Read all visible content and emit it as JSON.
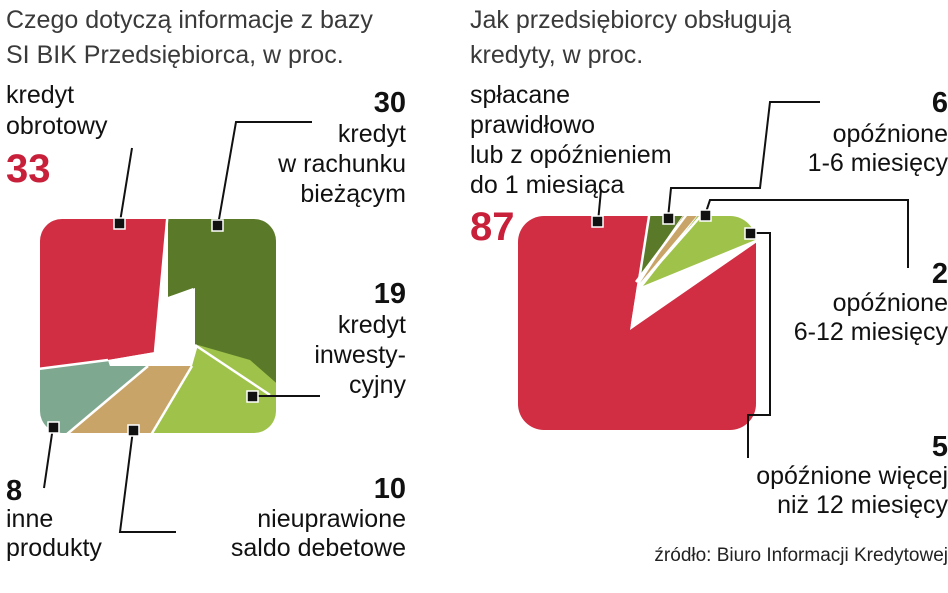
{
  "source": "źródło: Biuro Informacji Kredytowej",
  "chart_data": [
    {
      "type": "pie",
      "title": "Czego dotyczą informacje z bazy SI BIK Przedsiębiorca, w proc.",
      "title_lines": [
        "Czego dotyczą informacje z bazy",
        "SI BIK Przedsiębiorca, w proc."
      ],
      "slices": [
        {
          "value": 33,
          "label": "kredyt obrotowy",
          "label_lines": [
            "kredyt",
            "obrotowy"
          ],
          "color": "#d12e44"
        },
        {
          "value": 30,
          "label": "kredyt w rachunku bieżącym",
          "label_lines": [
            "kredyt",
            "w rachunku",
            "bieżącym"
          ],
          "color": "#5a7a2a"
        },
        {
          "value": 19,
          "label": "kredyt inwestycyjny",
          "label_lines": [
            "kredyt",
            "inwesty-",
            "cyjny"
          ],
          "color": "#9fc24a"
        },
        {
          "value": 10,
          "label": "nieuprawione saldo debetowe",
          "label_lines": [
            "nieuprawione",
            "saldo debetowe"
          ],
          "color": "#c9a468"
        },
        {
          "value": 8,
          "label": "inne produkty",
          "label_lines": [
            "inne",
            "produkty"
          ],
          "color": "#7ea890"
        }
      ]
    },
    {
      "type": "pie",
      "title": "Jak przedsiębiorcy obsługują kredyty, w proc.",
      "title_lines": [
        "Jak przedsiębiorcy obsługują",
        "kredyty, w proc."
      ],
      "slices": [
        {
          "value": 87,
          "value_text": "87",
          "label": "spłacane prawidłowo lub z opóźnieniem do 1 miesiąca",
          "label_lines": [
            "spłacane",
            "prawidłowo",
            "lub z opóźnieniem",
            "do 1 miesiąca"
          ],
          "color": "#d12e44"
        },
        {
          "value": 6,
          "value_text": "6",
          "label": "opóźnione 1-6 miesięcy",
          "label_lines": [
            "opóźnione",
            "1-6 miesięcy"
          ],
          "color": "#5a7a2a"
        },
        {
          "value": 2,
          "value_text": "2",
          "label": "opóźnione 6-12 miesięcy",
          "label_lines": [
            "opóźnione",
            "6-12 miesięcy"
          ],
          "color": "#c9a468"
        },
        {
          "value": 5,
          "value_text": "5",
          "label": "opóźnione więcej niż 12 miesięcy",
          "label_lines": [
            "opóźnione więcej",
            "niż 12 miesięcy"
          ],
          "color": "#9fc24a"
        }
      ]
    }
  ]
}
